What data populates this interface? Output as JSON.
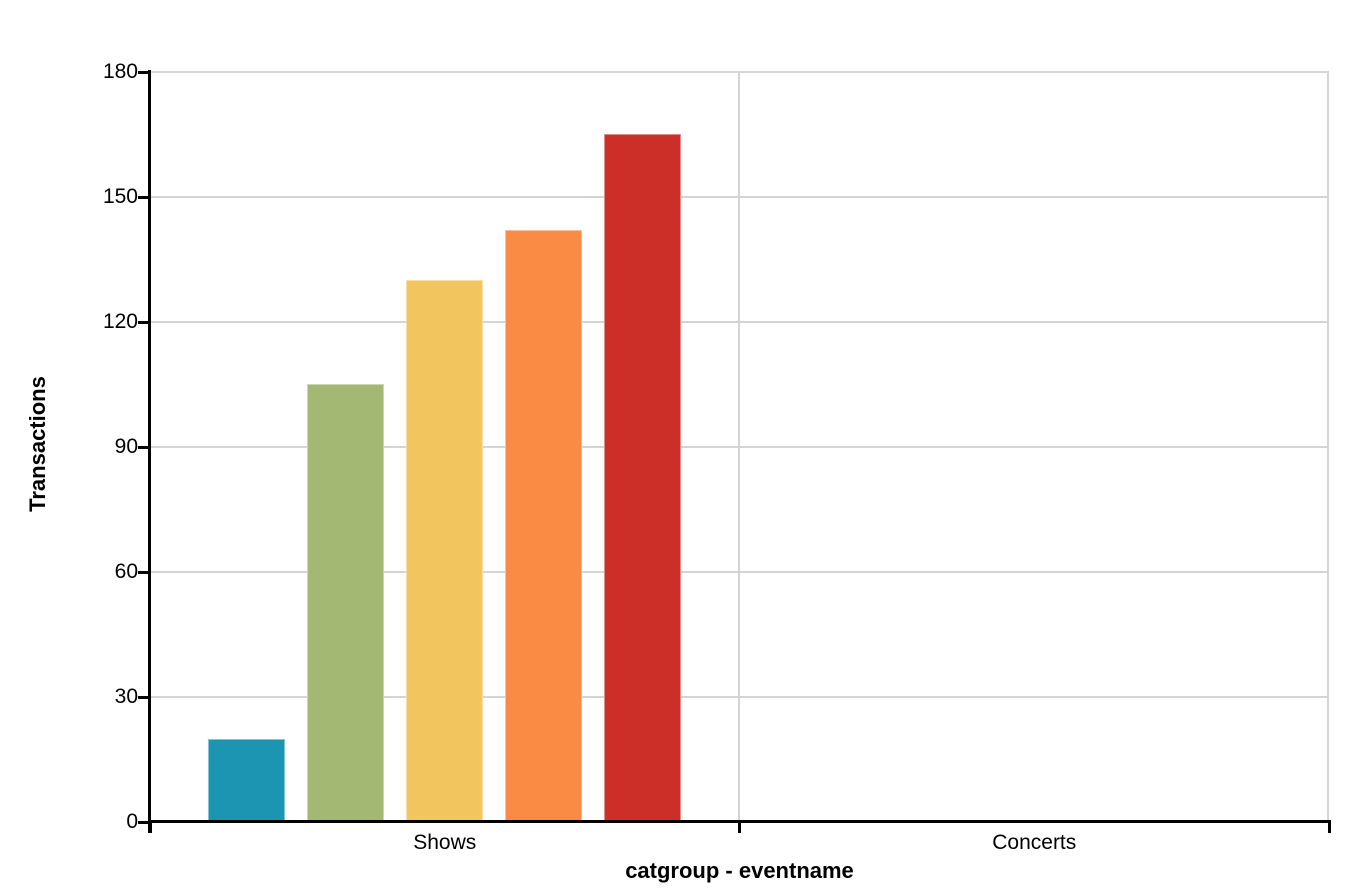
{
  "chart_data": {
    "type": "bar",
    "title": "",
    "xlabel": "catgroup - eventname",
    "ylabel": "Transactions",
    "ylim": [
      0,
      180
    ],
    "yticks": [
      0,
      30,
      60,
      90,
      120,
      150,
      180
    ],
    "grid": true,
    "legend": "none",
    "categories": [
      "Shows",
      "Concerts"
    ],
    "series": [
      {
        "category": "Shows",
        "values": [
          20,
          105,
          130,
          142,
          165
        ],
        "colors": [
          "#1B95B1",
          "#A2B873",
          "#F2C55E",
          "#FA8B44",
          "#CC2E28"
        ]
      },
      {
        "category": "Concerts",
        "values": [],
        "colors": []
      }
    ],
    "colors": {
      "axis": "#000000",
      "gridline": "#D4D4D4",
      "text": "#000000",
      "background": "#FFFFFF"
    }
  }
}
